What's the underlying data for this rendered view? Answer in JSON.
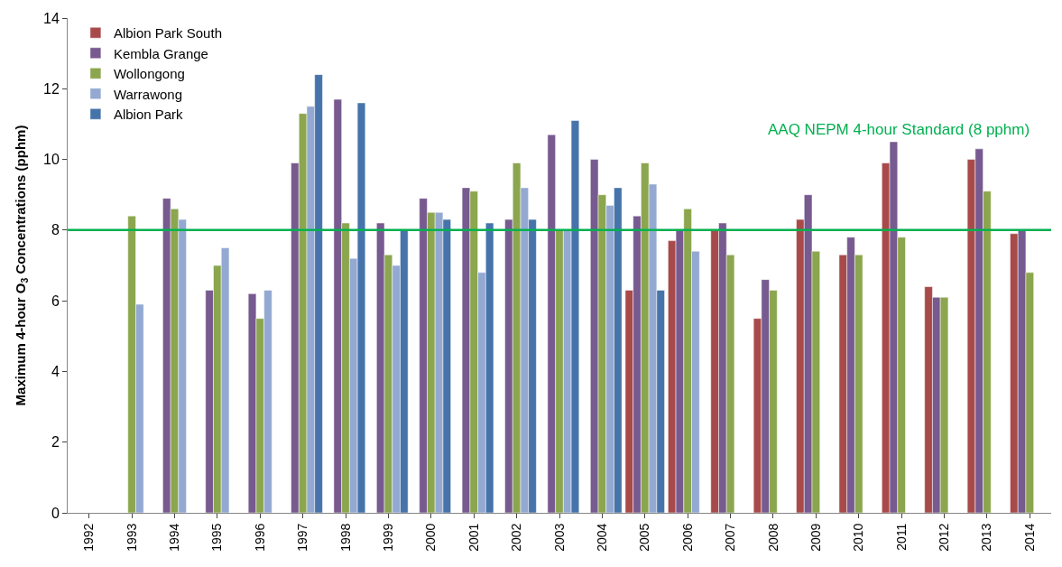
{
  "chart_data": {
    "type": "bar",
    "ylabel": "Maximum 4-hour O$_{3}$ Concentrations (pphm)",
    "categories": [
      "1992",
      "1993",
      "1994",
      "1995",
      "1996",
      "1997",
      "1998",
      "1999",
      "2000",
      "2001",
      "2002",
      "2003",
      "2004",
      "2005",
      "2006",
      "2007",
      "2008",
      "2009",
      "2010",
      "2011",
      "2012",
      "2013",
      "2014"
    ],
    "series": [
      {
        "name": "Albion Park South",
        "color": "#a84a49",
        "values": [
          null,
          null,
          null,
          null,
          null,
          null,
          null,
          null,
          null,
          null,
          null,
          null,
          null,
          6.3,
          7.7,
          8.0,
          5.5,
          8.3,
          7.3,
          9.9,
          6.4,
          10.0,
          7.9
        ]
      },
      {
        "name": "Kembla Grange",
        "color": "#775a8f",
        "values": [
          null,
          null,
          8.9,
          6.3,
          6.2,
          9.9,
          11.7,
          8.2,
          8.9,
          9.2,
          8.3,
          10.7,
          10.0,
          8.4,
          8.0,
          8.2,
          6.6,
          9.0,
          7.8,
          10.5,
          6.1,
          10.3,
          8.0
        ]
      },
      {
        "name": "Wollongong",
        "color": "#8ba64e",
        "values": [
          null,
          8.4,
          8.6,
          7.0,
          5.5,
          11.3,
          8.2,
          7.3,
          8.5,
          9.1,
          9.9,
          8.0,
          9.0,
          9.9,
          8.6,
          7.3,
          6.3,
          7.4,
          7.3,
          7.8,
          6.1,
          9.1,
          6.8
        ]
      },
      {
        "name": "Warrawong",
        "color": "#93a9d2",
        "values": [
          null,
          5.9,
          8.3,
          7.5,
          6.3,
          11.5,
          7.2,
          7.0,
          8.5,
          6.8,
          9.2,
          8.0,
          8.7,
          9.3,
          7.4,
          null,
          null,
          null,
          null,
          null,
          null,
          null,
          null
        ]
      },
      {
        "name": "Albion Park",
        "color": "#4674aa",
        "values": [
          null,
          null,
          null,
          null,
          null,
          12.4,
          11.6,
          8.0,
          8.3,
          8.2,
          8.3,
          11.1,
          9.2,
          6.3,
          null,
          null,
          null,
          null,
          null,
          null,
          null,
          null,
          null
        ]
      }
    ],
    "ylim": [
      0,
      14
    ],
    "yticks": [
      0,
      2,
      4,
      6,
      8,
      10,
      12,
      14
    ],
    "ref_lines": [
      {
        "axis": "y",
        "value": 8,
        "label": "AAQ NEPM 4-hour Standard (8 pphm)",
        "color": "#00b050"
      }
    ],
    "legend": "top left",
    "grid": false
  }
}
